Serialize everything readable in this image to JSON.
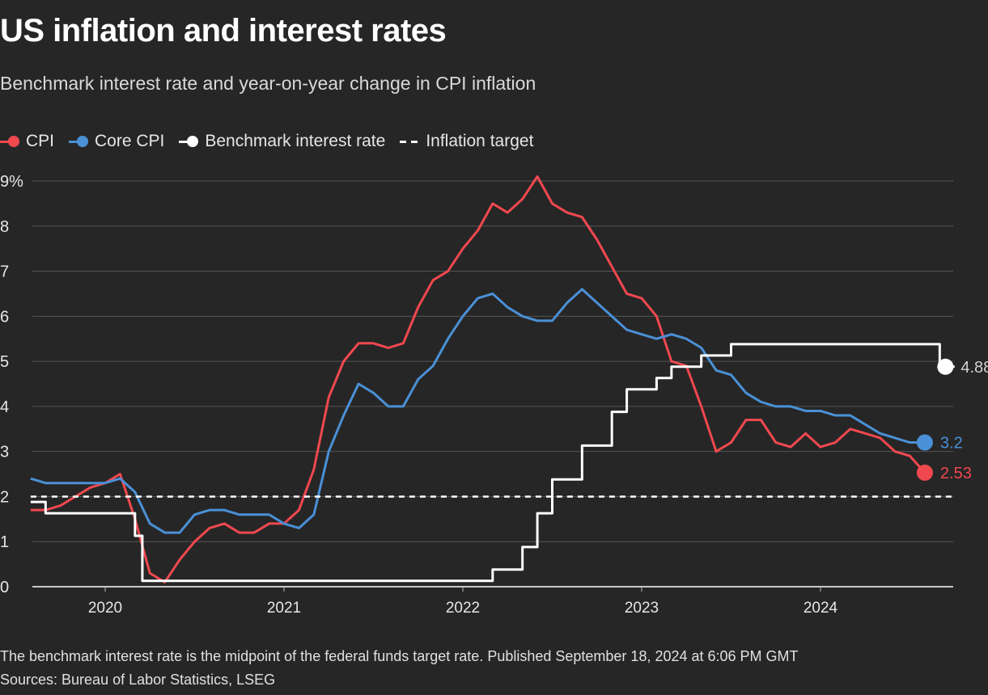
{
  "title": "US inflation and interest rates",
  "subtitle": "Benchmark interest rate and year-on-year change in CPI inflation",
  "legend": [
    {
      "label": "CPI",
      "color": "#f0484f",
      "style": "line-dot"
    },
    {
      "label": "Core CPI",
      "color": "#4a90d6",
      "style": "line-dot"
    },
    {
      "label": "Benchmark interest rate",
      "color": "#ffffff",
      "style": "line-dot"
    },
    {
      "label": "Inflation target",
      "color": "#ffffff",
      "style": "dashed"
    }
  ],
  "footer": {
    "note": "The benchmark interest rate is the midpoint of the federal funds target rate. Published September 18, 2024 at 6:06 PM GMT",
    "sources": "Sources: Bureau of Labor Statistics, LSEG"
  },
  "chart_data": {
    "type": "line",
    "title": "US inflation and interest rates",
    "subtitle": "Benchmark interest rate and year-on-year change in CPI inflation",
    "xlabel": "",
    "ylabel": "",
    "x_ticks": [
      "2020",
      "2021",
      "2022",
      "2023",
      "2024"
    ],
    "y_ticks": [
      "0",
      "1",
      "2",
      "3",
      "4",
      "5",
      "6",
      "7",
      "8",
      "9%"
    ],
    "ylim": [
      0,
      9
    ],
    "xlim": [
      "2019-08",
      "2024-10"
    ],
    "grid": true,
    "legend_position": "top-left",
    "series": [
      {
        "name": "CPI",
        "color": "#f0484f",
        "style": "line",
        "x": [
          "2019-08",
          "2019-09",
          "2019-10",
          "2019-11",
          "2019-12",
          "2020-01",
          "2020-02",
          "2020-03",
          "2020-04",
          "2020-05",
          "2020-06",
          "2020-07",
          "2020-08",
          "2020-09",
          "2020-10",
          "2020-11",
          "2020-12",
          "2021-01",
          "2021-02",
          "2021-03",
          "2021-04",
          "2021-05",
          "2021-06",
          "2021-07",
          "2021-08",
          "2021-09",
          "2021-10",
          "2021-11",
          "2021-12",
          "2022-01",
          "2022-02",
          "2022-03",
          "2022-04",
          "2022-05",
          "2022-06",
          "2022-07",
          "2022-08",
          "2022-09",
          "2022-10",
          "2022-11",
          "2022-12",
          "2023-01",
          "2023-02",
          "2023-03",
          "2023-04",
          "2023-05",
          "2023-06",
          "2023-07",
          "2023-08",
          "2023-09",
          "2023-10",
          "2023-11",
          "2023-12",
          "2024-01",
          "2024-02",
          "2024-03",
          "2024-04",
          "2024-05",
          "2024-06",
          "2024-07",
          "2024-08"
        ],
        "values": [
          1.7,
          1.7,
          1.8,
          2.0,
          2.2,
          2.3,
          2.5,
          1.5,
          0.3,
          0.1,
          0.6,
          1.0,
          1.3,
          1.4,
          1.2,
          1.2,
          1.4,
          1.4,
          1.7,
          2.6,
          4.2,
          5.0,
          5.4,
          5.4,
          5.3,
          5.4,
          6.2,
          6.8,
          7.0,
          7.5,
          7.9,
          8.5,
          8.3,
          8.6,
          9.1,
          8.5,
          8.3,
          8.2,
          7.7,
          7.1,
          6.5,
          6.4,
          6.0,
          5.0,
          4.9,
          4.0,
          3.0,
          3.2,
          3.7,
          3.7,
          3.2,
          3.1,
          3.4,
          3.1,
          3.2,
          3.5,
          3.4,
          3.3,
          3.0,
          2.9,
          2.53
        ],
        "end_label": "2.53"
      },
      {
        "name": "Core CPI",
        "color": "#4a90d6",
        "style": "line",
        "x": [
          "2019-08",
          "2019-09",
          "2019-10",
          "2019-11",
          "2019-12",
          "2020-01",
          "2020-02",
          "2020-03",
          "2020-04",
          "2020-05",
          "2020-06",
          "2020-07",
          "2020-08",
          "2020-09",
          "2020-10",
          "2020-11",
          "2020-12",
          "2021-01",
          "2021-02",
          "2021-03",
          "2021-04",
          "2021-05",
          "2021-06",
          "2021-07",
          "2021-08",
          "2021-09",
          "2021-10",
          "2021-11",
          "2021-12",
          "2022-01",
          "2022-02",
          "2022-03",
          "2022-04",
          "2022-05",
          "2022-06",
          "2022-07",
          "2022-08",
          "2022-09",
          "2022-10",
          "2022-11",
          "2022-12",
          "2023-01",
          "2023-02",
          "2023-03",
          "2023-04",
          "2023-05",
          "2023-06",
          "2023-07",
          "2023-08",
          "2023-09",
          "2023-10",
          "2023-11",
          "2023-12",
          "2024-01",
          "2024-02",
          "2024-03",
          "2024-04",
          "2024-05",
          "2024-06",
          "2024-07",
          "2024-08"
        ],
        "values": [
          2.4,
          2.3,
          2.3,
          2.3,
          2.3,
          2.3,
          2.4,
          2.1,
          1.4,
          1.2,
          1.2,
          1.6,
          1.7,
          1.7,
          1.6,
          1.6,
          1.6,
          1.4,
          1.3,
          1.6,
          3.0,
          3.8,
          4.5,
          4.3,
          4.0,
          4.0,
          4.6,
          4.9,
          5.5,
          6.0,
          6.4,
          6.5,
          6.2,
          6.0,
          5.9,
          5.9,
          6.3,
          6.6,
          6.3,
          6.0,
          5.7,
          5.6,
          5.5,
          5.6,
          5.5,
          5.3,
          4.8,
          4.7,
          4.3,
          4.1,
          4.0,
          4.0,
          3.9,
          3.9,
          3.8,
          3.8,
          3.6,
          3.4,
          3.3,
          3.2,
          3.2
        ],
        "end_label": "3.2"
      },
      {
        "name": "Benchmark interest rate",
        "color": "#ffffff",
        "style": "step",
        "x": [
          "2019-08",
          "2019-09",
          "2019-11",
          "2020-03",
          "2020-03-16",
          "2022-03",
          "2022-05",
          "2022-06",
          "2022-07",
          "2022-08",
          "2022-09",
          "2022-11",
          "2022-12",
          "2023-02",
          "2023-03",
          "2023-05",
          "2023-07",
          "2024-09",
          "2024-10"
        ],
        "values": [
          1.88,
          1.63,
          1.63,
          1.13,
          0.13,
          0.38,
          0.88,
          1.63,
          2.38,
          2.38,
          3.13,
          3.88,
          4.38,
          4.63,
          4.88,
          5.13,
          5.38,
          4.88,
          4.88
        ],
        "end_label": "4.88"
      },
      {
        "name": "Inflation target",
        "color": "#ffffff",
        "style": "dashed",
        "x": [
          "2019-08",
          "2024-10"
        ],
        "values": [
          2,
          2
        ]
      }
    ]
  }
}
